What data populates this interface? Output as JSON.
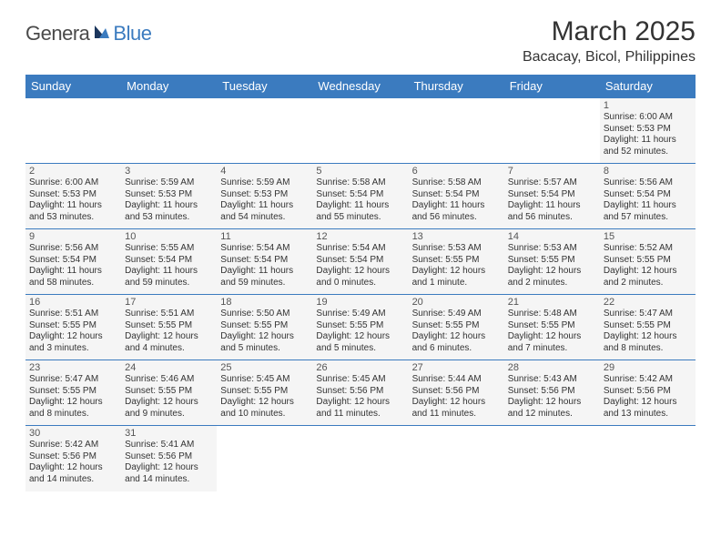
{
  "logo": {
    "part1": "Genera",
    "part2": "Blue"
  },
  "title": "March 2025",
  "location": "Bacacay, Bicol, Philippines",
  "weekdays": [
    "Sunday",
    "Monday",
    "Tuesday",
    "Wednesday",
    "Thursday",
    "Friday",
    "Saturday"
  ],
  "colors": {
    "brand_blue": "#3b7bbf",
    "logo_gray": "#4a4a4a",
    "text": "#333333",
    "cell_bg": "#f5f5f5",
    "page_bg": "#ffffff"
  },
  "typography": {
    "title_fontsize": 30,
    "location_fontsize": 16,
    "weekday_fontsize": 13,
    "daynum_fontsize": 11,
    "body_fontsize": 10
  },
  "layout": {
    "cols": 7,
    "rows": 6,
    "start_day_index": 6,
    "days_in_month": 31
  },
  "days": {
    "1": {
      "sunrise": "Sunrise: 6:00 AM",
      "sunset": "Sunset: 5:53 PM",
      "d1": "Daylight: 11 hours",
      "d2": "and 52 minutes."
    },
    "2": {
      "sunrise": "Sunrise: 6:00 AM",
      "sunset": "Sunset: 5:53 PM",
      "d1": "Daylight: 11 hours",
      "d2": "and 53 minutes."
    },
    "3": {
      "sunrise": "Sunrise: 5:59 AM",
      "sunset": "Sunset: 5:53 PM",
      "d1": "Daylight: 11 hours",
      "d2": "and 53 minutes."
    },
    "4": {
      "sunrise": "Sunrise: 5:59 AM",
      "sunset": "Sunset: 5:53 PM",
      "d1": "Daylight: 11 hours",
      "d2": "and 54 minutes."
    },
    "5": {
      "sunrise": "Sunrise: 5:58 AM",
      "sunset": "Sunset: 5:54 PM",
      "d1": "Daylight: 11 hours",
      "d2": "and 55 minutes."
    },
    "6": {
      "sunrise": "Sunrise: 5:58 AM",
      "sunset": "Sunset: 5:54 PM",
      "d1": "Daylight: 11 hours",
      "d2": "and 56 minutes."
    },
    "7": {
      "sunrise": "Sunrise: 5:57 AM",
      "sunset": "Sunset: 5:54 PM",
      "d1": "Daylight: 11 hours",
      "d2": "and 56 minutes."
    },
    "8": {
      "sunrise": "Sunrise: 5:56 AM",
      "sunset": "Sunset: 5:54 PM",
      "d1": "Daylight: 11 hours",
      "d2": "and 57 minutes."
    },
    "9": {
      "sunrise": "Sunrise: 5:56 AM",
      "sunset": "Sunset: 5:54 PM",
      "d1": "Daylight: 11 hours",
      "d2": "and 58 minutes."
    },
    "10": {
      "sunrise": "Sunrise: 5:55 AM",
      "sunset": "Sunset: 5:54 PM",
      "d1": "Daylight: 11 hours",
      "d2": "and 59 minutes."
    },
    "11": {
      "sunrise": "Sunrise: 5:54 AM",
      "sunset": "Sunset: 5:54 PM",
      "d1": "Daylight: 11 hours",
      "d2": "and 59 minutes."
    },
    "12": {
      "sunrise": "Sunrise: 5:54 AM",
      "sunset": "Sunset: 5:54 PM",
      "d1": "Daylight: 12 hours",
      "d2": "and 0 minutes."
    },
    "13": {
      "sunrise": "Sunrise: 5:53 AM",
      "sunset": "Sunset: 5:55 PM",
      "d1": "Daylight: 12 hours",
      "d2": "and 1 minute."
    },
    "14": {
      "sunrise": "Sunrise: 5:53 AM",
      "sunset": "Sunset: 5:55 PM",
      "d1": "Daylight: 12 hours",
      "d2": "and 2 minutes."
    },
    "15": {
      "sunrise": "Sunrise: 5:52 AM",
      "sunset": "Sunset: 5:55 PM",
      "d1": "Daylight: 12 hours",
      "d2": "and 2 minutes."
    },
    "16": {
      "sunrise": "Sunrise: 5:51 AM",
      "sunset": "Sunset: 5:55 PM",
      "d1": "Daylight: 12 hours",
      "d2": "and 3 minutes."
    },
    "17": {
      "sunrise": "Sunrise: 5:51 AM",
      "sunset": "Sunset: 5:55 PM",
      "d1": "Daylight: 12 hours",
      "d2": "and 4 minutes."
    },
    "18": {
      "sunrise": "Sunrise: 5:50 AM",
      "sunset": "Sunset: 5:55 PM",
      "d1": "Daylight: 12 hours",
      "d2": "and 5 minutes."
    },
    "19": {
      "sunrise": "Sunrise: 5:49 AM",
      "sunset": "Sunset: 5:55 PM",
      "d1": "Daylight: 12 hours",
      "d2": "and 5 minutes."
    },
    "20": {
      "sunrise": "Sunrise: 5:49 AM",
      "sunset": "Sunset: 5:55 PM",
      "d1": "Daylight: 12 hours",
      "d2": "and 6 minutes."
    },
    "21": {
      "sunrise": "Sunrise: 5:48 AM",
      "sunset": "Sunset: 5:55 PM",
      "d1": "Daylight: 12 hours",
      "d2": "and 7 minutes."
    },
    "22": {
      "sunrise": "Sunrise: 5:47 AM",
      "sunset": "Sunset: 5:55 PM",
      "d1": "Daylight: 12 hours",
      "d2": "and 8 minutes."
    },
    "23": {
      "sunrise": "Sunrise: 5:47 AM",
      "sunset": "Sunset: 5:55 PM",
      "d1": "Daylight: 12 hours",
      "d2": "and 8 minutes."
    },
    "24": {
      "sunrise": "Sunrise: 5:46 AM",
      "sunset": "Sunset: 5:55 PM",
      "d1": "Daylight: 12 hours",
      "d2": "and 9 minutes."
    },
    "25": {
      "sunrise": "Sunrise: 5:45 AM",
      "sunset": "Sunset: 5:55 PM",
      "d1": "Daylight: 12 hours",
      "d2": "and 10 minutes."
    },
    "26": {
      "sunrise": "Sunrise: 5:45 AM",
      "sunset": "Sunset: 5:56 PM",
      "d1": "Daylight: 12 hours",
      "d2": "and 11 minutes."
    },
    "27": {
      "sunrise": "Sunrise: 5:44 AM",
      "sunset": "Sunset: 5:56 PM",
      "d1": "Daylight: 12 hours",
      "d2": "and 11 minutes."
    },
    "28": {
      "sunrise": "Sunrise: 5:43 AM",
      "sunset": "Sunset: 5:56 PM",
      "d1": "Daylight: 12 hours",
      "d2": "and 12 minutes."
    },
    "29": {
      "sunrise": "Sunrise: 5:42 AM",
      "sunset": "Sunset: 5:56 PM",
      "d1": "Daylight: 12 hours",
      "d2": "and 13 minutes."
    },
    "30": {
      "sunrise": "Sunrise: 5:42 AM",
      "sunset": "Sunset: 5:56 PM",
      "d1": "Daylight: 12 hours",
      "d2": "and 14 minutes."
    },
    "31": {
      "sunrise": "Sunrise: 5:41 AM",
      "sunset": "Sunset: 5:56 PM",
      "d1": "Daylight: 12 hours",
      "d2": "and 14 minutes."
    }
  }
}
